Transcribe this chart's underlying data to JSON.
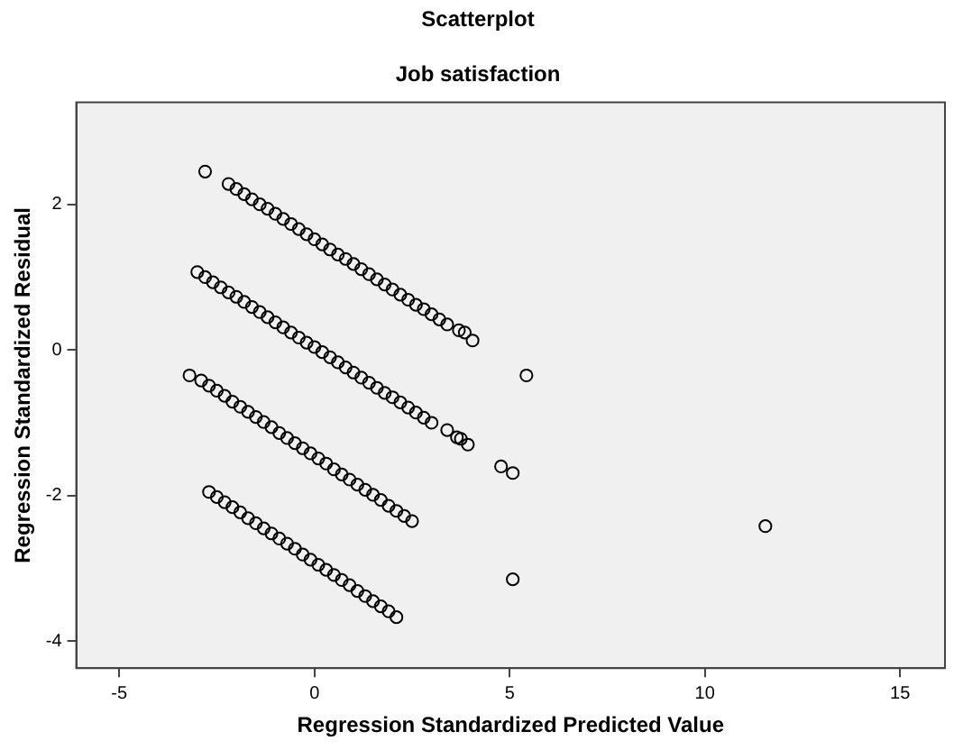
{
  "chart_data": {
    "type": "scatter",
    "title": "Scatterplot",
    "subtitle": "Job satisfaction",
    "xlabel": "Regression Standardized Predicted Value",
    "ylabel": "Regression Standardized Residual",
    "xlim": [
      -6.1,
      16.15
    ],
    "ylim": [
      -4.37,
      3.4
    ],
    "xticks": [
      -5,
      0,
      5,
      10,
      15
    ],
    "yticks": [
      -4,
      -2,
      0,
      2
    ],
    "grid": false,
    "legend": false,
    "marker": "circle",
    "series": [
      {
        "color": "#000000",
        "x": [
          -2.8,
          -2.2,
          -2.0,
          -1.8,
          -1.6,
          -1.4,
          -1.2,
          -1.0,
          -0.8,
          -0.6,
          -0.4,
          -0.2,
          0,
          0.2,
          0.4,
          0.6,
          0.8,
          1.0,
          1.2,
          1.4,
          1.6,
          1.8,
          2.0,
          2.2,
          2.4,
          2.6,
          2.8,
          3.0,
          3.2,
          3.4,
          3.7,
          3.85,
          4.05,
          -3.0,
          -2.8,
          -2.6,
          -2.4,
          -2.2,
          -2.0,
          -1.8,
          -1.6,
          -1.4,
          -1.2,
          -1.0,
          -0.8,
          -0.6,
          -0.4,
          -0.2,
          0,
          0.2,
          0.4,
          0.6,
          0.8,
          1.0,
          1.2,
          1.4,
          1.6,
          1.8,
          2.0,
          2.2,
          2.4,
          2.6,
          2.8,
          3.0,
          3.4,
          3.65,
          3.75,
          3.93,
          -3.2,
          -2.9,
          -2.7,
          -2.5,
          -2.3,
          -2.1,
          -1.9,
          -1.7,
          -1.5,
          -1.3,
          -1.1,
          -0.9,
          -0.7,
          -0.5,
          -0.3,
          -0.1,
          0.1,
          0.3,
          0.5,
          0.7,
          0.9,
          1.1,
          1.3,
          1.5,
          1.7,
          1.9,
          2.1,
          2.3,
          2.5,
          -2.7,
          -2.5,
          -2.3,
          -2.1,
          -1.9,
          -1.7,
          -1.5,
          -1.3,
          -1.1,
          -0.9,
          -0.7,
          -0.5,
          -0.3,
          -0.1,
          0.1,
          0.3,
          0.5,
          0.7,
          0.9,
          1.1,
          1.3,
          1.5,
          1.7,
          1.9,
          2.1,
          5.43,
          4.78,
          5.08,
          11.55,
          5.08
        ],
        "values": [
          2.45,
          2.28,
          2.21,
          2.14,
          2.07,
          2.0,
          1.94,
          1.87,
          1.8,
          1.73,
          1.66,
          1.59,
          1.52,
          1.45,
          1.38,
          1.31,
          1.25,
          1.18,
          1.11,
          1.04,
          0.97,
          0.9,
          0.83,
          0.76,
          0.69,
          0.62,
          0.56,
          0.49,
          0.42,
          0.35,
          0.27,
          0.24,
          0.13,
          1.07,
          1.0,
          0.93,
          0.86,
          0.79,
          0.73,
          0.66,
          0.59,
          0.52,
          0.45,
          0.38,
          0.31,
          0.24,
          0.17,
          0.1,
          0.04,
          -0.03,
          -0.1,
          -0.17,
          -0.24,
          -0.31,
          -0.38,
          -0.45,
          -0.52,
          -0.59,
          -0.65,
          -0.72,
          -0.79,
          -0.86,
          -0.93,
          -1.0,
          -1.1,
          -1.2,
          -1.22,
          -1.3,
          -0.35,
          -0.42,
          -0.49,
          -0.56,
          -0.63,
          -0.71,
          -0.78,
          -0.85,
          -0.92,
          -0.99,
          -1.06,
          -1.14,
          -1.21,
          -1.28,
          -1.35,
          -1.42,
          -1.49,
          -1.56,
          -1.64,
          -1.71,
          -1.78,
          -1.85,
          -1.92,
          -1.99,
          -2.06,
          -2.14,
          -2.21,
          -2.28,
          -2.35,
          -1.95,
          -2.02,
          -2.09,
          -2.16,
          -2.23,
          -2.31,
          -2.38,
          -2.45,
          -2.52,
          -2.59,
          -2.66,
          -2.73,
          -2.81,
          -2.88,
          -2.95,
          -3.02,
          -3.09,
          -3.16,
          -3.23,
          -3.31,
          -3.38,
          -3.45,
          -3.52,
          -3.59,
          -3.67,
          -0.35,
          -1.6,
          -1.69,
          -2.42,
          -3.15
        ]
      }
    ]
  }
}
